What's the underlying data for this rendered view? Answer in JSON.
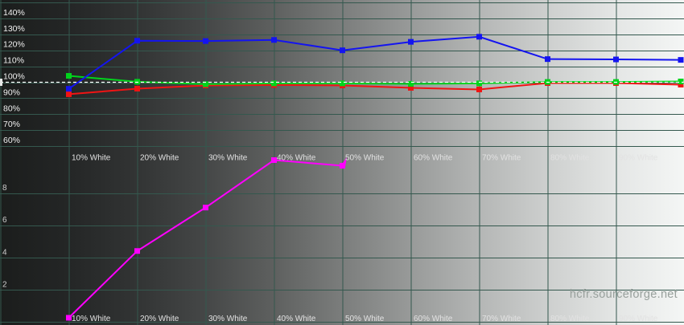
{
  "watermark": "hcfr.sourceforge.net",
  "colors": {
    "grid": "#34584e",
    "reference_line": "#ffffff",
    "axis_label": "#f0f0f0",
    "x_label": "#e2e2e2",
    "lower_tick_label": "#cfcfcf",
    "watermark": "#98a09c",
    "background_left": "#1b1d1c",
    "background_right": "#f4f6f5"
  },
  "chart_data": {
    "type": "line",
    "description": "HCFR RGB levels (%) and delta E versus grayscale stimulus",
    "x_stimulus_percent": [
      10,
      20,
      30,
      40,
      50,
      60,
      70,
      80,
      90,
      100
    ],
    "x_tick_labels": [
      "10% White",
      "20% White",
      "30% White",
      "40% White",
      "50% White",
      "60% White",
      "70% White",
      "80% White",
      "90% White"
    ],
    "x_label_rows": 2,
    "upper_axis": {
      "unit": "%",
      "tick_labels": [
        "140%",
        "130%",
        "120%",
        "110%",
        "100%",
        "90%",
        "80%",
        "70%",
        "60%"
      ],
      "tick_values": [
        140,
        130,
        120,
        110,
        100,
        90,
        80,
        70,
        60
      ],
      "ylim": [
        57,
        152
      ],
      "grid_step_percent": 10,
      "reference_line_percent": 100
    },
    "lower_axis": {
      "tick_labels": [
        "8",
        "6",
        "4",
        "2"
      ],
      "tick_values": [
        8,
        6,
        4,
        2
      ],
      "ylim": [
        0,
        10.2
      ],
      "grid_step": 2
    },
    "grid": true,
    "legend": "none",
    "series": [
      {
        "name": "red-level",
        "axis": "upper",
        "color": "#f01414",
        "values": [
          92.5,
          96,
          98,
          98.3,
          98,
          96.5,
          95.5,
          99.5,
          99.5,
          98.5
        ]
      },
      {
        "name": "green-level",
        "axis": "upper",
        "color": "#00d41c",
        "values": [
          104,
          100.3,
          98.8,
          99.3,
          99.3,
          99,
          99.3,
          100.2,
          100.2,
          100.5
        ]
      },
      {
        "name": "blue-level",
        "axis": "upper",
        "color": "#1414f0",
        "values": [
          95.9,
          126,
          125.8,
          126.5,
          120,
          125.3,
          128.5,
          114.5,
          114.3,
          114
        ]
      },
      {
        "name": "delta-e",
        "axis": "lower",
        "color": "#ff00ff",
        "values": [
          0.25,
          4.4,
          7.1,
          10.05,
          9.7
        ]
      }
    ],
    "cursor_at": {
      "series": "delta-e",
      "x_stimulus_percent": 50
    }
  }
}
